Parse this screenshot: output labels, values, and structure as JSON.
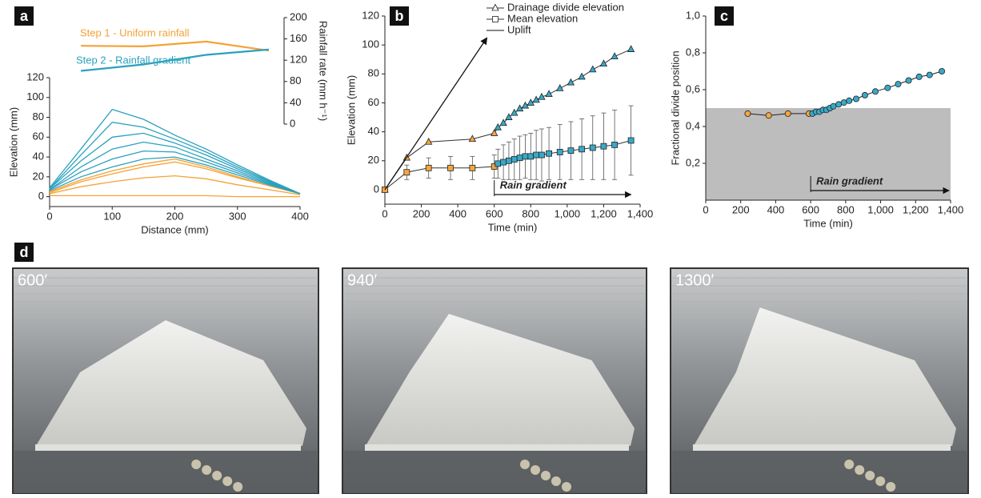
{
  "panels": [
    "a",
    "b",
    "c",
    "d"
  ],
  "chart_data": [
    {
      "type": "line",
      "xlabel": "Distance (mm)",
      "ylabel": "Elevation (mm)",
      "y2label": "Rainfall rate (mm h⁻¹)",
      "x": [
        0,
        50,
        100,
        150,
        200,
        250,
        300,
        350,
        400
      ],
      "xlim": [
        0,
        400
      ],
      "xticks": [
        0,
        100,
        200,
        300,
        400
      ],
      "ylim": [
        -10,
        120
      ],
      "yticks": [
        0,
        20,
        40,
        60,
        80,
        100,
        120
      ],
      "y2lim": [
        0,
        200
      ],
      "y2ticks": [
        0,
        40,
        80,
        120,
        160,
        200
      ],
      "series": [
        {
          "color": "#f5a236",
          "values": [
            1,
            1,
            1,
            1,
            1,
            1,
            0,
            0,
            0
          ]
        },
        {
          "color": "#f5a236",
          "values": [
            3,
            10,
            15,
            19,
            21,
            18,
            12,
            7,
            2
          ]
        },
        {
          "color": "#f5a236",
          "values": [
            4,
            15,
            23,
            30,
            35,
            28,
            19,
            11,
            3
          ]
        },
        {
          "color": "#f5a236",
          "values": [
            5,
            17,
            26,
            33,
            38,
            30,
            20,
            11,
            3
          ]
        },
        {
          "color": "#2aa1bf",
          "values": [
            6,
            20,
            30,
            38,
            40,
            32,
            22,
            12,
            3
          ]
        },
        {
          "color": "#2aa1bf",
          "values": [
            7,
            25,
            38,
            46,
            45,
            35,
            24,
            13,
            3
          ]
        },
        {
          "color": "#2aa1bf",
          "values": [
            7,
            30,
            48,
            55,
            50,
            38,
            26,
            14,
            3
          ]
        },
        {
          "color": "#2aa1bf",
          "values": [
            8,
            36,
            60,
            64,
            54,
            42,
            28,
            15,
            3
          ]
        },
        {
          "color": "#2aa1bf",
          "values": [
            8,
            42,
            75,
            70,
            58,
            45,
            30,
            16,
            3
          ]
        },
        {
          "color": "#2aa1bf",
          "values": [
            9,
            48,
            88,
            78,
            62,
            48,
            32,
            17,
            3
          ]
        },
        {
          "name": "Step 1 - Uniform rainfall",
          "color": "#f5a236",
          "axis": "y2",
          "x": [
            50,
            150,
            250,
            350
          ],
          "values": [
            147,
            146,
            155,
            138
          ]
        },
        {
          "name": "Step 2 - Rainfall gradient",
          "color": "#2aa1bf",
          "axis": "y2",
          "x": [
            50,
            150,
            250,
            350
          ],
          "values": [
            100,
            112,
            130,
            140
          ]
        }
      ]
    },
    {
      "type": "line",
      "xlabel": "Time (min)",
      "ylabel": "Elevation (mm)",
      "xlim": [
        0,
        1400
      ],
      "xticks": [
        0,
        200,
        400,
        600,
        800,
        {
          "value": 1000,
          "label": "1,000"
        },
        {
          "value": 1200,
          "label": "1,200"
        },
        {
          "value": 1400,
          "label": "1,400"
        }
      ],
      "ylim": [
        -10,
        120
      ],
      "yticks": [
        0,
        20,
        40,
        60,
        80,
        100,
        120
      ],
      "marker_colors": [
        "#f7a541",
        "#38a9c8"
      ],
      "rain_gradient": {
        "label": "Rain gradient",
        "start": 600,
        "end": 1350
      },
      "series": [
        {
          "name": "Drainage divide elevation",
          "color": "#333333",
          "marker": "triangle",
          "x": [
            0,
            120,
            240,
            480,
            600,
            620,
            650,
            680,
            710,
            740,
            770,
            800,
            830,
            860,
            900,
            960,
            1020,
            1080,
            1140,
            1200,
            1260,
            1350
          ],
          "values": [
            0,
            22,
            33,
            35,
            39,
            43,
            46,
            50,
            53,
            56,
            58,
            60,
            62,
            64,
            66,
            70,
            74,
            78,
            83,
            87,
            92,
            97
          ]
        },
        {
          "name": "Mean elevation",
          "color": "#333333",
          "marker": "square",
          "x": [
            0,
            120,
            240,
            360,
            480,
            600,
            620,
            650,
            680,
            710,
            740,
            770,
            800,
            830,
            860,
            900,
            960,
            1020,
            1080,
            1140,
            1200,
            1260,
            1350
          ],
          "values": [
            0,
            12,
            15,
            15,
            15,
            16,
            18,
            19,
            20,
            21,
            22,
            23,
            23,
            24,
            24,
            25,
            26,
            27,
            28,
            29,
            30,
            31,
            34
          ],
          "errors": [
            0,
            5,
            7,
            8,
            8,
            8,
            10,
            12,
            13,
            14,
            15,
            15,
            16,
            17,
            18,
            18,
            19,
            20,
            21,
            22,
            23,
            24,
            24
          ]
        },
        {
          "name": "Uplift",
          "color": "#111111",
          "arrow": true,
          "x": [
            0,
            560
          ],
          "values": [
            0,
            105
          ]
        }
      ]
    },
    {
      "type": "line",
      "xlabel": "Time (min)",
      "ylabel": "Fractional divide position",
      "xlim": [
        0,
        1400
      ],
      "xticks": [
        0,
        200,
        400,
        600,
        800,
        {
          "value": 1000,
          "label": "1,000"
        },
        {
          "value": 1200,
          "label": "1,200"
        },
        {
          "value": 1400,
          "label": "1,400"
        }
      ],
      "ylim": [
        0,
        1.0
      ],
      "yticks": [
        {
          "value": 0.2,
          "label": "0,2"
        },
        {
          "value": 0.4,
          "label": "0,4"
        },
        {
          "value": 0.6,
          "label": "0,6"
        },
        {
          "value": 0.8,
          "label": "0,8"
        },
        {
          "value": 1.0,
          "label": "1,0"
        }
      ],
      "shaded_range": [
        0,
        0.5
      ],
      "shade_color": "#bdbdbd",
      "marker_colors": [
        "#f7a541",
        "#38a9c8"
      ],
      "rain_gradient": {
        "label": "Rain gradient",
        "start": 600,
        "end": 1400
      },
      "series": [
        {
          "color": "#222222",
          "marker": "circle",
          "x": [
            240,
            360,
            470,
            590,
            610,
            630,
            650,
            670,
            690,
            710,
            730,
            760,
            790,
            820,
            860,
            910,
            970,
            1040,
            1100,
            1160,
            1220,
            1280,
            1350
          ],
          "values": [
            0.47,
            0.46,
            0.47,
            0.47,
            0.47,
            0.48,
            0.48,
            0.49,
            0.49,
            0.5,
            0.51,
            0.52,
            0.53,
            0.54,
            0.55,
            0.57,
            0.59,
            0.61,
            0.63,
            0.65,
            0.67,
            0.68,
            0.7
          ]
        }
      ]
    }
  ],
  "photos": [
    {
      "label": "600′"
    },
    {
      "label": "940′"
    },
    {
      "label": "1300′"
    }
  ]
}
